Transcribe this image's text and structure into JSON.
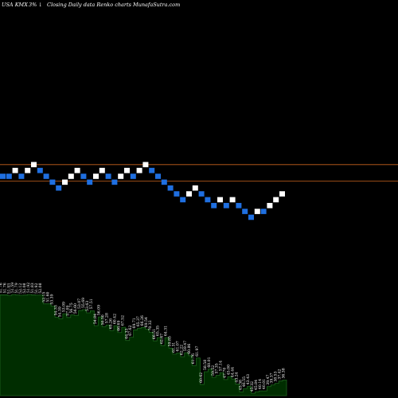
{
  "header": {
    "ticker": "USA KMX",
    "change": "3%",
    "change_icon": "down-arrow-icon",
    "title": "Closing Daily data Renko charts MunafaSutra.com"
  },
  "colors": {
    "background": "#000000",
    "up_brick": "#ffffff",
    "down_brick": "#1f6fe0",
    "reference_line": "#c8641e",
    "panel_fill": "#002d00",
    "panel_stroke": "#1e641e"
  },
  "chart_data": [
    {
      "type": "renko",
      "title": "",
      "reference_lines": [
        2,
        -0.8
      ],
      "ylim": [
        -7.2,
        3.8
      ],
      "bricks": [
        {
          "dir": "down",
          "level": 0
        },
        {
          "dir": "down",
          "level": 0
        },
        {
          "dir": "up",
          "level": 1
        },
        {
          "dir": "down",
          "level": 0
        },
        {
          "dir": "up",
          "level": 1
        },
        {
          "dir": "up",
          "level": 2
        },
        {
          "dir": "down",
          "level": 1
        },
        {
          "dir": "down",
          "level": 0
        },
        {
          "dir": "down",
          "level": -1
        },
        {
          "dir": "down",
          "level": -2
        },
        {
          "dir": "up",
          "level": -1
        },
        {
          "dir": "up",
          "level": 0
        },
        {
          "dir": "up",
          "level": 1
        },
        {
          "dir": "down",
          "level": 0
        },
        {
          "dir": "down",
          "level": -1
        },
        {
          "dir": "up",
          "level": 0
        },
        {
          "dir": "up",
          "level": 1
        },
        {
          "dir": "down",
          "level": 0
        },
        {
          "dir": "down",
          "level": -1
        },
        {
          "dir": "up",
          "level": 0
        },
        {
          "dir": "up",
          "level": 1
        },
        {
          "dir": "down",
          "level": 0
        },
        {
          "dir": "up",
          "level": 1
        },
        {
          "dir": "up",
          "level": 2
        },
        {
          "dir": "down",
          "level": 1
        },
        {
          "dir": "down",
          "level": 0
        },
        {
          "dir": "down",
          "level": -1
        },
        {
          "dir": "down",
          "level": -2
        },
        {
          "dir": "down",
          "level": -3
        },
        {
          "dir": "down",
          "level": -4
        },
        {
          "dir": "up",
          "level": -3
        },
        {
          "dir": "up",
          "level": -2
        },
        {
          "dir": "down",
          "level": -3
        },
        {
          "dir": "down",
          "level": -4
        },
        {
          "dir": "down",
          "level": -5
        },
        {
          "dir": "up",
          "level": -4
        },
        {
          "dir": "down",
          "level": -5
        },
        {
          "dir": "up",
          "level": -4
        },
        {
          "dir": "down",
          "level": -5
        },
        {
          "dir": "down",
          "level": -6
        },
        {
          "dir": "down",
          "level": -7
        },
        {
          "dir": "up",
          "level": -6
        },
        {
          "dir": "down",
          "level": -6
        },
        {
          "dir": "up",
          "level": -5
        },
        {
          "dir": "up",
          "level": -4
        },
        {
          "dir": "up",
          "level": -3
        }
      ]
    },
    {
      "type": "area",
      "title": "",
      "values": [
        93.76,
        93.76,
        93.26,
        94.09,
        93.69,
        93.45,
        93.57,
        94.06,
        93.73,
        93.52,
        93.61,
        85.4,
        85.43,
        83.22,
        73.05,
        71.57,
        76.18,
        72.74,
        75.17,
        74.67,
        79.22,
        79.98,
        77.06,
        78.97,
        65.08,
        73.24,
        64.14,
        65.73,
        60.56,
        65.08,
        58.69,
        63.62,
        51.34,
        54.25,
        61.14,
        62.75,
        63.46,
        61.97,
        58.86,
        50.96,
        54.01,
        46.64,
        53.97,
        44.2,
        38.63,
        39.65,
        36.22,
        39.92,
        37.19,
        27.98,
        34.99,
        10.42,
        22.21,
        24.73,
        17.05,
        18.9,
        21.37,
        14.89,
        17.67,
        15.49,
        10.68,
        3.54,
        6.58,
        8.72,
        2.14,
        3.61,
        4.38,
        4.38,
        8.36,
        9.93,
        11.4,
        13.58,
        14.45
      ],
      "data_labels": [
        "51.76",
        "51.76",
        "51.93",
        "51.59",
        "51.79",
        "52.12",
        "52.08",
        "51.92",
        "51.83",
        "51.92",
        "52.08",
        "52.15",
        "51.60",
        "53.39",
        "54.33",
        "54.39",
        "53.09",
        "57.09",
        "56.75",
        "56.60",
        "53.07",
        "55.69",
        "53.63",
        "57.51",
        "54.84",
        "56.09",
        "50.50",
        "57.28",
        "65.26",
        "60.42",
        "66.69",
        "67.52",
        "64.33",
        "67.62",
        "69.71",
        "65.37",
        "66.26",
        "69.54",
        "70.32",
        "66.51",
        "65.35",
        "62.67",
        "64.31",
        "59.85",
        "61.31",
        "61.07",
        "62.22",
        "59.47",
        "60.86",
        "61.76",
        "61.97",
        "60.62",
        "58.58",
        "60.01",
        "59.52",
        "57.35",
        "57.14",
        "47.70",
        "45.00",
        "44.44",
        "43.24",
        "45.38",
        "46.55",
        "43.43",
        "45.32",
        "45.84",
        "40.14",
        "40.01",
        "39.47",
        "39.37",
        "38.53",
        "37.42",
        "36.38"
      ]
    }
  ]
}
